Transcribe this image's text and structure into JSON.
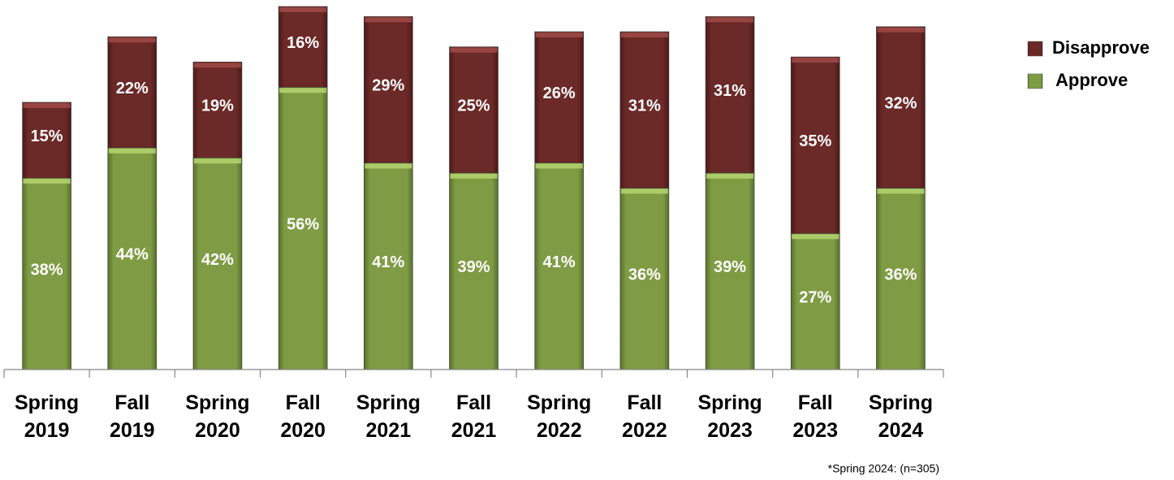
{
  "chart_data": {
    "type": "stacked_bar",
    "categories": [
      "Spring 2019",
      "Fall 2019",
      "Spring 2020",
      "Fall 2020",
      "Spring 2021",
      "Fall 2021",
      "Spring 2022",
      "Fall 2022",
      "Spring 2023",
      "Fall 2023",
      "Spring 2024"
    ],
    "series": [
      {
        "name": "Approve",
        "color": "#77933c",
        "values": [
          38,
          44,
          42,
          56,
          41,
          39,
          41,
          36,
          39,
          27,
          36
        ],
        "value_labels": [
          "38%",
          "44%",
          "42%",
          "56%",
          "41%",
          "39%",
          "41%",
          "36%",
          "39%",
          "27%",
          "36%"
        ]
      },
      {
        "name": "Disapprove",
        "color": "#632523",
        "values": [
          15,
          22,
          19,
          16,
          29,
          25,
          26,
          31,
          31,
          35,
          32
        ],
        "value_labels": [
          "15%",
          "22%",
          "19%",
          "16%",
          "29%",
          "25%",
          "26%",
          "31%",
          "31%",
          "35%",
          "32%"
        ]
      }
    ],
    "legend": "top-right",
    "footnote": "*Spring 2024: (n=305)"
  }
}
